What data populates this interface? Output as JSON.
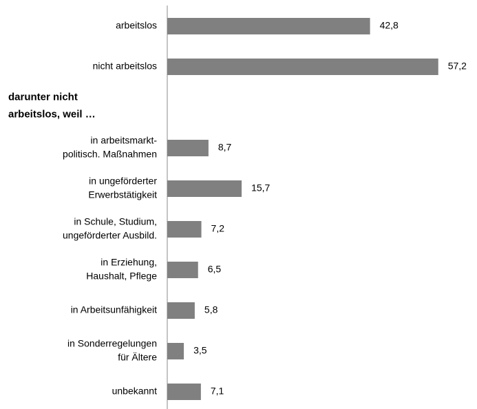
{
  "chart_data": {
    "type": "hbar",
    "categories": [
      [
        "arbeitslos"
      ],
      [
        "nicht arbeitslos"
      ],
      [
        "in arbeitsmarkt-",
        "politisch. Maßnahmen"
      ],
      [
        "in ungeförderter",
        "Erwerbstätigkeit"
      ],
      [
        "in Schule, Studium,",
        "ungeförderter Ausbild."
      ],
      [
        "in Erziehung,",
        "Haushalt, Pflege"
      ],
      [
        "in Arbeitsunfähigkeit"
      ],
      [
        "in Sonderregelungen",
        "für Ältere"
      ],
      [
        "unbekannt"
      ]
    ],
    "section_heading": [
      "darunter nicht",
      "arbeitslos, weil …"
    ],
    "values": [
      42.8,
      57.2,
      8.7,
      15.7,
      7.2,
      6.5,
      5.8,
      3.5,
      7.1
    ],
    "value_labels": [
      "42,8",
      "57,2",
      "8,7",
      "15,7",
      "7,2",
      "6,5",
      "5,8",
      "3,5",
      "7,1"
    ],
    "color": "#808080",
    "xlim": [
      0,
      60
    ]
  }
}
